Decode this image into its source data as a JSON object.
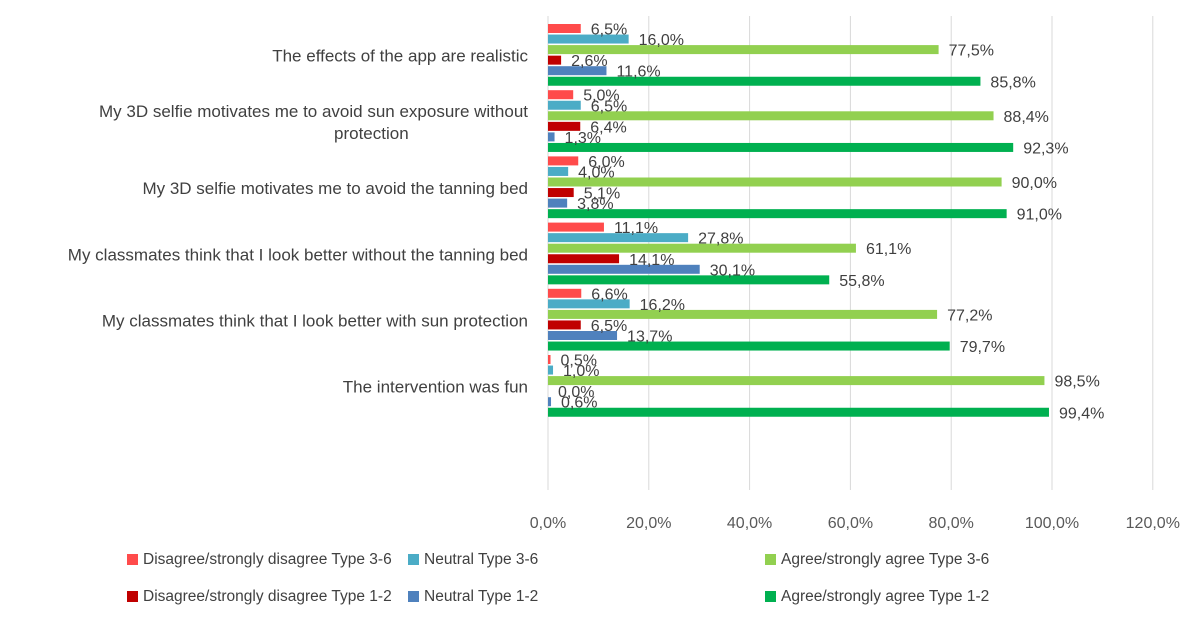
{
  "chart_data": {
    "type": "bar",
    "orientation": "horizontal",
    "title": "",
    "xlabel": "",
    "ylabel": "",
    "xlim": [
      0,
      120
    ],
    "grid": true,
    "legend_position": "bottom",
    "categories": [
      {
        "lines": [
          "The effects of the app are realistic"
        ]
      },
      {
        "lines": [
          "My 3D selfie motivates me to avoid sun exposure without",
          "protection"
        ]
      },
      {
        "lines": [
          "My 3D selfie motivates me to avoid the tanning bed"
        ]
      },
      {
        "lines": [
          "My classmates think that I look better without the tanning bed"
        ]
      },
      {
        "lines": [
          "My classmates think that I look better with sun protection"
        ]
      },
      {
        "lines": [
          "The intervention was fun"
        ]
      }
    ],
    "x_ticks": [
      {
        "value": 0,
        "label": "0,0%"
      },
      {
        "value": 20,
        "label": "20,0%"
      },
      {
        "value": 40,
        "label": "40,0%"
      },
      {
        "value": 60,
        "label": "60,0%"
      },
      {
        "value": 80,
        "label": "80,0%"
      },
      {
        "value": 100,
        "label": "100,0%"
      },
      {
        "value": 120,
        "label": "120,0%"
      }
    ],
    "series": [
      {
        "name": "Disagree/strongly disagree Type 3-6",
        "color": "#ff4b4b",
        "values": [
          6.5,
          5.0,
          6.0,
          11.1,
          6.6,
          0.5
        ],
        "labels": [
          "6,5%",
          "5,0%",
          "6,0%",
          "11,1%",
          "6,6%",
          "0,5%"
        ]
      },
      {
        "name": "Neutral Type 3-6",
        "color": "#4bacc6",
        "values": [
          16.0,
          6.5,
          4.0,
          27.8,
          16.2,
          1.0
        ],
        "labels": [
          "16,0%",
          "6,5%",
          "4,0%",
          "27,8%",
          "16,2%",
          "1,0%"
        ]
      },
      {
        "name": "Agree/strongly agree Type 3-6",
        "color": "#92d050",
        "values": [
          77.5,
          88.4,
          90.0,
          61.1,
          77.2,
          98.5
        ],
        "labels": [
          "77,5%",
          "88,4%",
          "90,0%",
          "61,1%",
          "77,2%",
          "98,5%"
        ]
      },
      {
        "name": "Disagree/strongly disagree Type 1-2",
        "color": "#c00000",
        "values": [
          2.6,
          6.4,
          5.1,
          14.1,
          6.5,
          0.0
        ],
        "labels": [
          "2,6%",
          "6,4%",
          "5,1%",
          "14,1%",
          "6,5%",
          "0,0%"
        ]
      },
      {
        "name": "Neutral Type 1-2",
        "color": "#4f81bd",
        "values": [
          11.6,
          1.3,
          3.8,
          30.1,
          13.7,
          0.6
        ],
        "labels": [
          "11,6%",
          "1,3%",
          "3,8%",
          "30,1%",
          "13,7%",
          "0,6%"
        ]
      },
      {
        "name": "Agree/strongly agree Type 1-2",
        "color": "#00b050",
        "values": [
          85.8,
          92.3,
          91.0,
          55.8,
          79.7,
          99.4
        ],
        "labels": [
          "85,8%",
          "92,3%",
          "91,0%",
          "55,8%",
          "79,7%",
          "99,4%"
        ]
      }
    ]
  }
}
